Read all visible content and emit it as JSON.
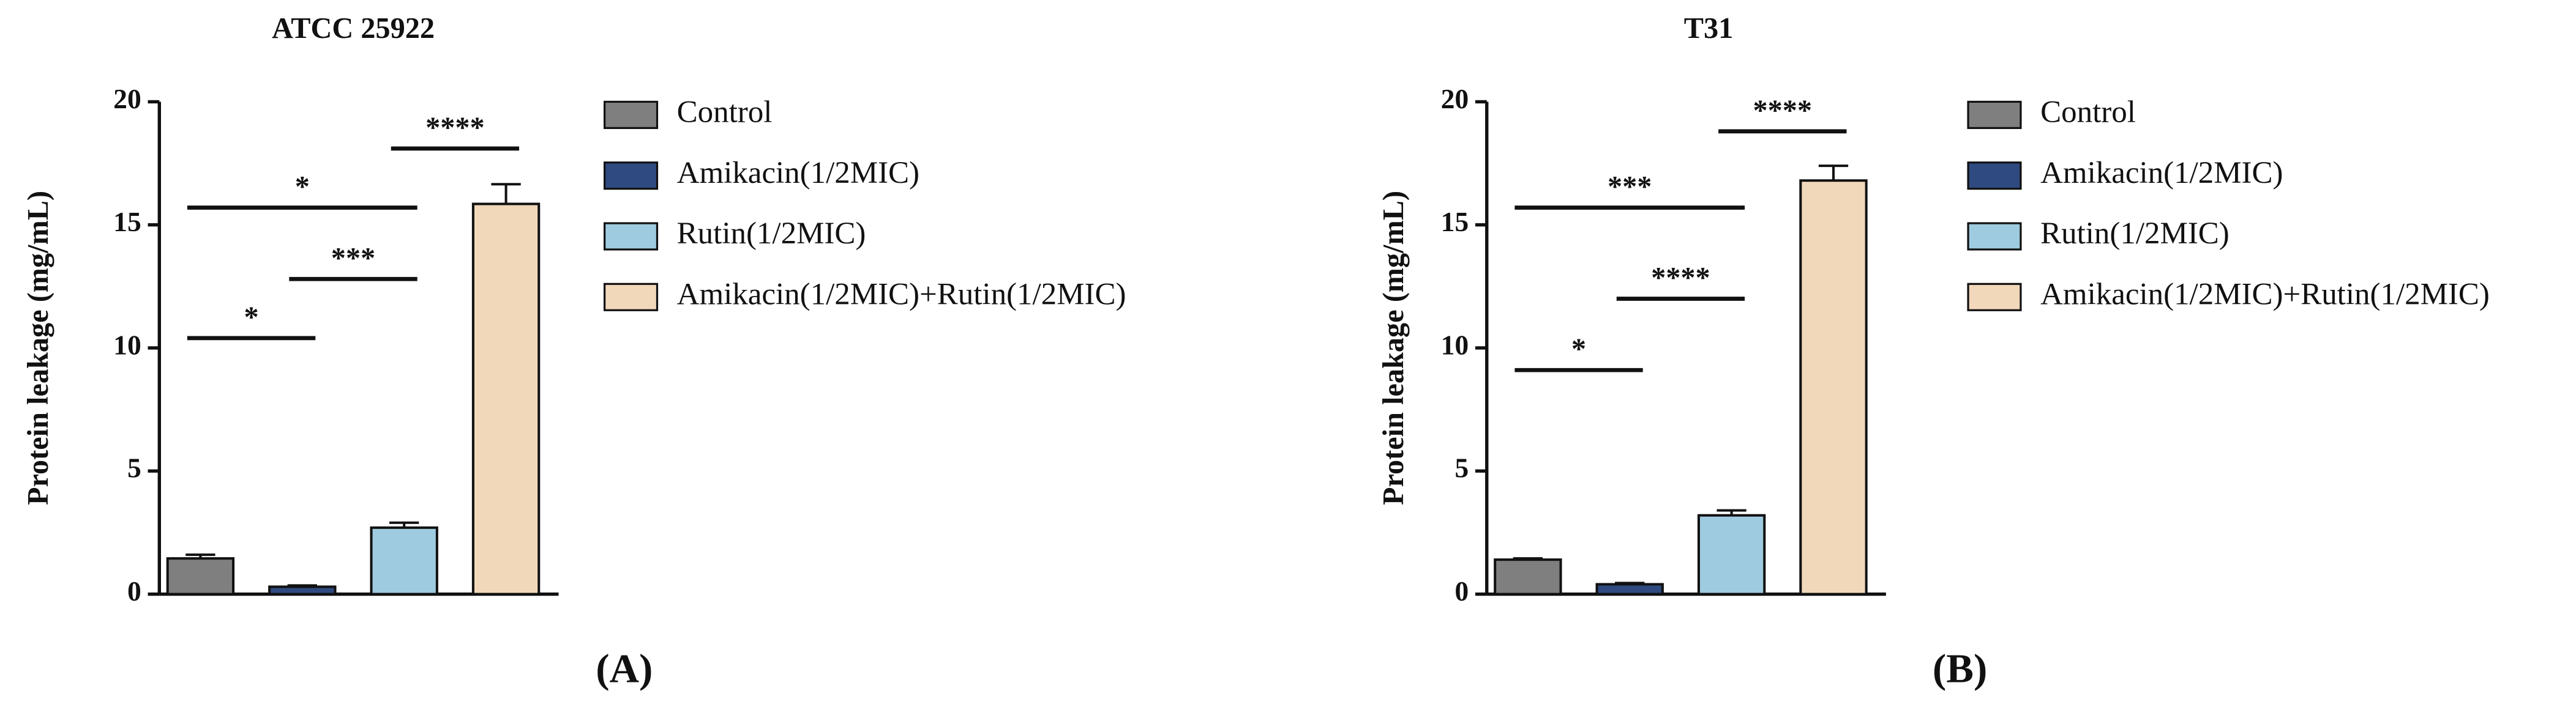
{
  "chart_data": [
    {
      "type": "bar",
      "title": "ATCC 25922",
      "ylabel": "Protein leakage (mg/mL)",
      "panel_label": "(A)",
      "categories": [
        "Control",
        "Amikacin(1/2MIC)",
        "Rutin(1/2MIC)",
        "Amikacin(1/2MIC)+Rutin(1/2MIC)"
      ],
      "values": [
        1.45,
        0.3,
        2.7,
        15.85
      ],
      "errors": [
        0.15,
        0.05,
        0.2,
        0.8
      ],
      "colors": [
        "#7f7f7f",
        "#2f4a80",
        "#9ecbdf",
        "#f2d8bb"
      ],
      "ylim": [
        0,
        20
      ],
      "yticks": [
        0,
        5,
        10,
        15,
        20
      ],
      "annotations": [
        {
          "label": "*",
          "from": "Control",
          "to": "Amikacin(1/2MIC)",
          "y": 10.4
        },
        {
          "label": "***",
          "from": "Amikacin(1/2MIC)",
          "to": "Rutin(1/2MIC)",
          "y": 12.8
        },
        {
          "label": "*",
          "from": "Control",
          "to": "Rutin(1/2MIC)",
          "y": 15.7
        },
        {
          "label": "****",
          "from": "Rutin(1/2MIC)",
          "to": "Amikacin(1/2MIC)+Rutin(1/2MIC)",
          "y": 18.1
        }
      ]
    },
    {
      "type": "bar",
      "title": "T31",
      "ylabel": "Protein leakage (mg/mL)",
      "panel_label": "(B)",
      "categories": [
        "Control",
        "Amikacin(1/2MIC)",
        "Rutin(1/2MIC)",
        "Amikacin(1/2MIC)+Rutin(1/2MIC)"
      ],
      "values": [
        1.4,
        0.4,
        3.2,
        16.8
      ],
      "errors": [
        0.05,
        0.05,
        0.2,
        0.6
      ],
      "colors": [
        "#7f7f7f",
        "#2f4a80",
        "#9ecbdf",
        "#f2d8bb"
      ],
      "ylim": [
        0,
        20
      ],
      "yticks": [
        0,
        5,
        10,
        15,
        20
      ],
      "annotations": [
        {
          "label": "*",
          "from": "Control",
          "to": "Amikacin(1/2MIC)",
          "y": 9.1
        },
        {
          "label": "****",
          "from": "Amikacin(1/2MIC)",
          "to": "Rutin(1/2MIC)",
          "y": 12.0
        },
        {
          "label": "***",
          "from": "Control",
          "to": "Rutin(1/2MIC)",
          "y": 15.7
        },
        {
          "label": "****",
          "from": "Rutin(1/2MIC)",
          "to": "Amikacin(1/2MIC)+Rutin(1/2MIC)",
          "y": 18.8
        }
      ]
    }
  ]
}
